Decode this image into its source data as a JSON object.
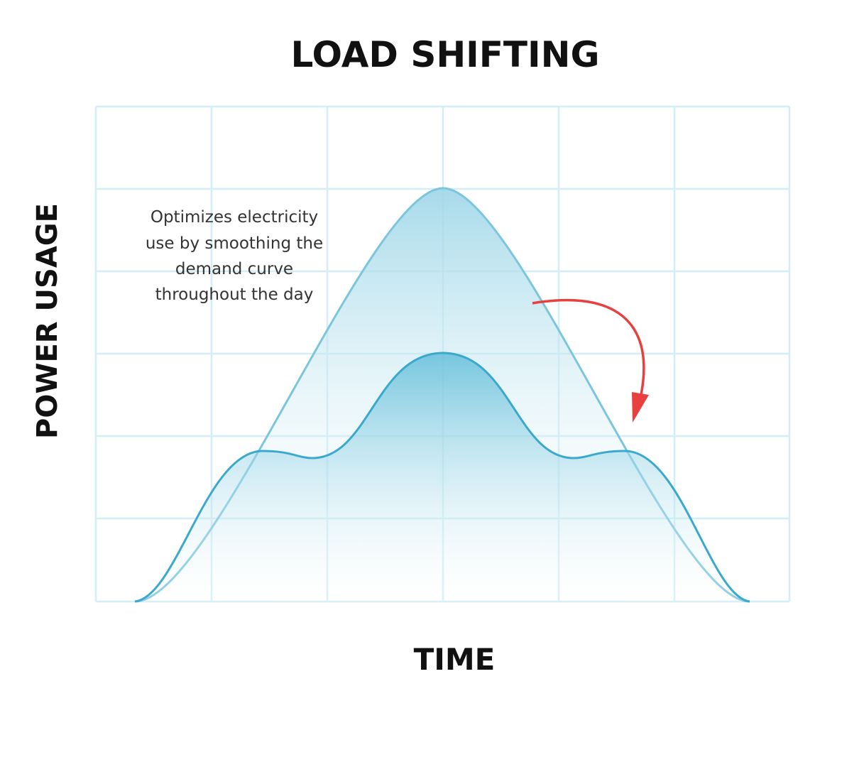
{
  "title": "LOAD SHIFTING",
  "y_axis_label": "POWER USAGE",
  "x_axis_label": "TIME",
  "annotation": {
    "lines": [
      "Optimizes electricity",
      "use by smoothing the",
      "demand curve",
      "throughout the day"
    ]
  }
}
